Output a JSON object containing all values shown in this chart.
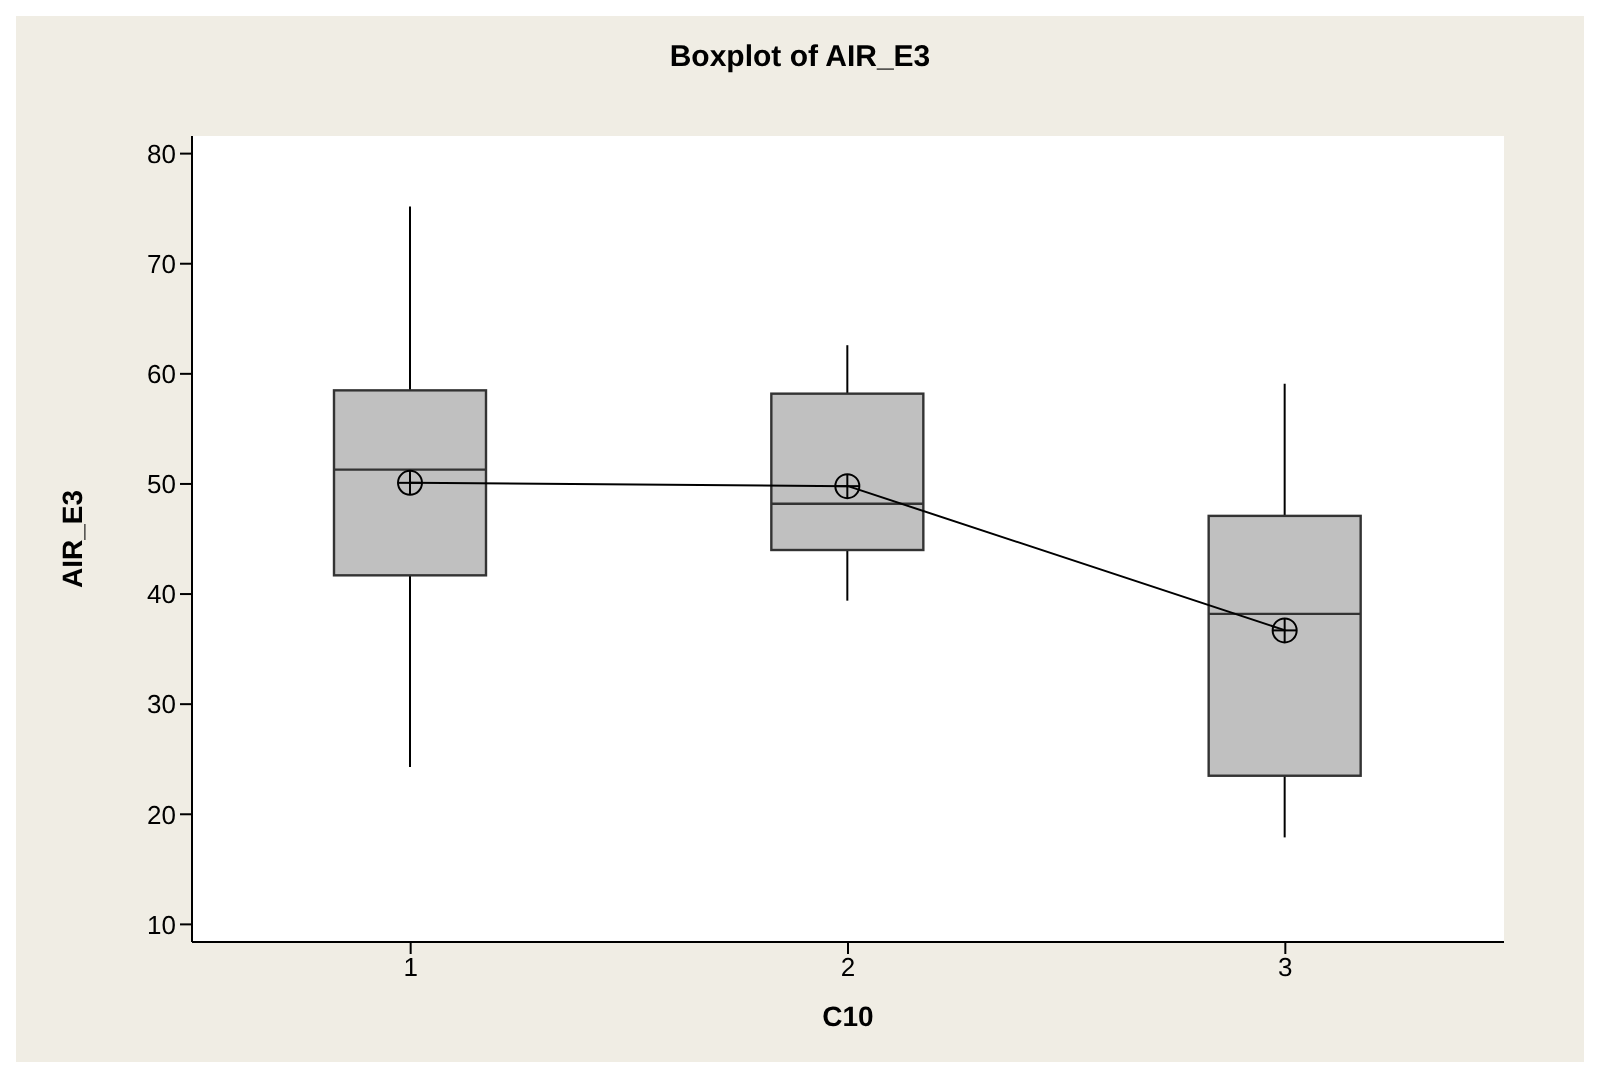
{
  "chart_data": {
    "type": "box",
    "title": "Boxplot of AIR_E3",
    "xlabel": "C10",
    "ylabel": "AIR_E3",
    "categories": [
      "1",
      "2",
      "3"
    ],
    "boxes": [
      {
        "low": 24.3,
        "q1": 41.7,
        "median": 51.3,
        "q3": 58.5,
        "high": 75.2,
        "mean": 50.1
      },
      {
        "low": 39.4,
        "q1": 44.0,
        "median": 48.2,
        "q3": 58.2,
        "high": 62.6,
        "mean": 49.8
      },
      {
        "low": 17.9,
        "q1": 23.5,
        "median": 38.2,
        "q3": 47.1,
        "high": 59.1,
        "mean": 36.7
      }
    ],
    "series": [
      {
        "type": "line",
        "color": "#000000",
        "values": [
          50.1,
          49.8,
          36.7
        ]
      }
    ],
    "color": "#c0c0c0",
    "ylim": [
      8.4,
      81.6
    ],
    "yticks": [
      10,
      20,
      30,
      40,
      50,
      60,
      70,
      80
    ]
  }
}
